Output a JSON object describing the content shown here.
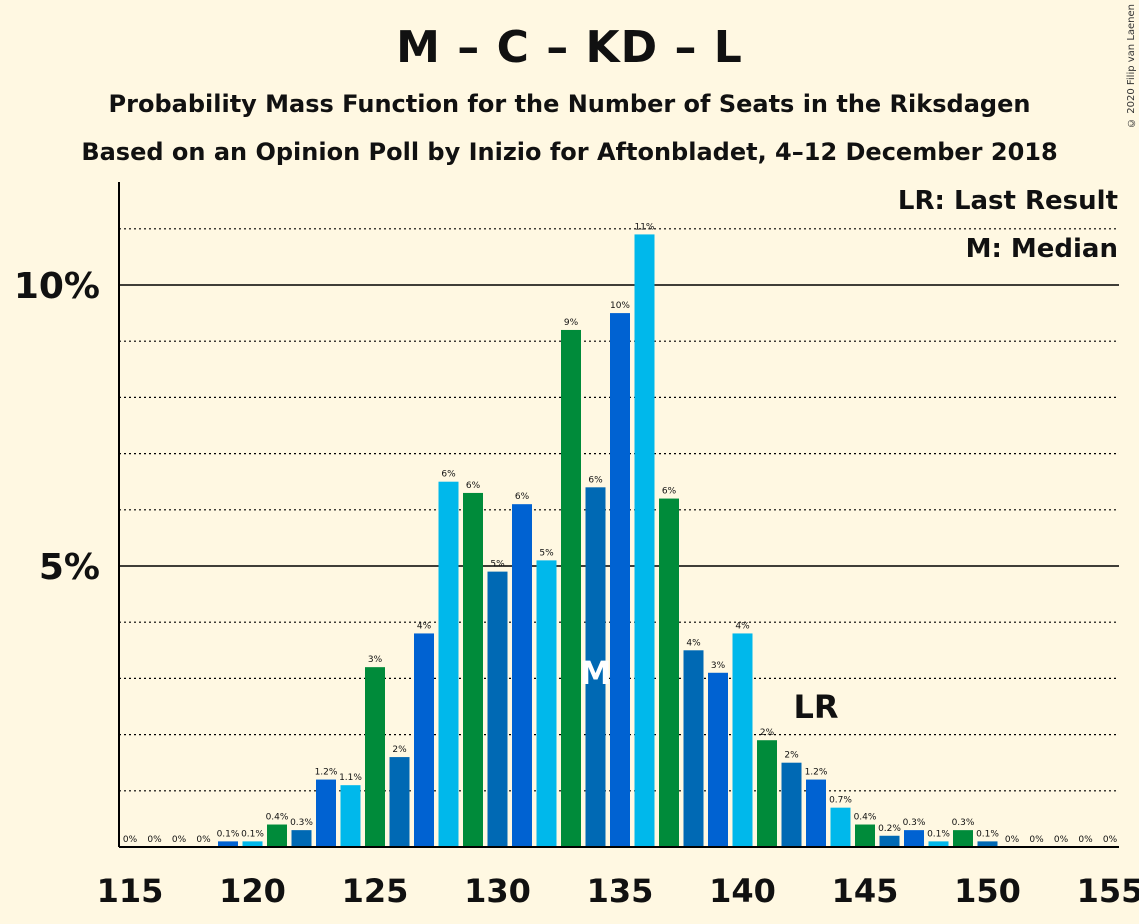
{
  "copyright": "© 2020 Filip van Laenen",
  "legend": {
    "last_result": "LR: Last Result",
    "median": "M: Median"
  },
  "colors": {
    "background": "#fff8e2",
    "green": "#008b3a",
    "blue_mid": "#0069b4",
    "blue_dark": "#0062d2",
    "cyan": "#00b8eb"
  },
  "chart_data": {
    "type": "bar",
    "title": "M – C – KD – L",
    "subtitle": "Probability Mass Function for the Number of Seats in the Riksdagen",
    "subtitle2": "Based on an Opinion Poll by Inizio for Aftonbladet, 4–12 December 2018",
    "x": [
      115,
      116,
      117,
      118,
      119,
      120,
      121,
      122,
      123,
      124,
      125,
      126,
      127,
      128,
      129,
      130,
      131,
      132,
      133,
      134,
      135,
      136,
      137,
      138,
      139,
      140,
      141,
      142,
      143,
      144,
      145,
      146,
      147,
      148,
      149,
      150,
      151,
      152,
      153,
      154,
      155
    ],
    "values": [
      0,
      0,
      0,
      0,
      0.1,
      0.1,
      0.4,
      0.3,
      1.2,
      1.1,
      3.2,
      1.6,
      3.8,
      6.5,
      6.3,
      4.9,
      6.1,
      5.1,
      9.2,
      6.4,
      9.5,
      10.9,
      6.2,
      3.5,
      3.1,
      3.8,
      1.9,
      1.5,
      1.2,
      0.7,
      0.4,
      0.2,
      0.3,
      0.1,
      0.3,
      0.1,
      0,
      0,
      0,
      0,
      0
    ],
    "labels": [
      "0%",
      "0%",
      "0%",
      "0%",
      "0.1%",
      "0.1%",
      "0.4%",
      "0.3%",
      "1.2%",
      "1.1%",
      "3%",
      "2%",
      "4%",
      "6%",
      "6%",
      "5%",
      "6%",
      "5%",
      "9%",
      "6%",
      "10%",
      "11%",
      "6%",
      "4%",
      "3%",
      "4%",
      "2%",
      "2%",
      "1.2%",
      "0.7%",
      "0.4%",
      "0.2%",
      "0.3%",
      "0.1%",
      "0.3%",
      "0.1%",
      "0%",
      "0%",
      "0%",
      "0%",
      "0%"
    ],
    "xticks": [
      115,
      120,
      125,
      130,
      135,
      140,
      145,
      150,
      155
    ],
    "xtick_labels": [
      "115",
      "120",
      "125",
      "130",
      "135",
      "140",
      "145",
      "150",
      "155"
    ],
    "yticks": [
      {
        "value": 5,
        "label": "5%"
      },
      {
        "value": 10,
        "label": "10%"
      }
    ],
    "ylim": [
      0,
      11.9
    ],
    "median": {
      "seat": 134,
      "label": "M"
    },
    "last_result": {
      "seat": 143,
      "label": "LR"
    },
    "grid": "dotted lines every 1%, solid at 5% and 10%"
  }
}
